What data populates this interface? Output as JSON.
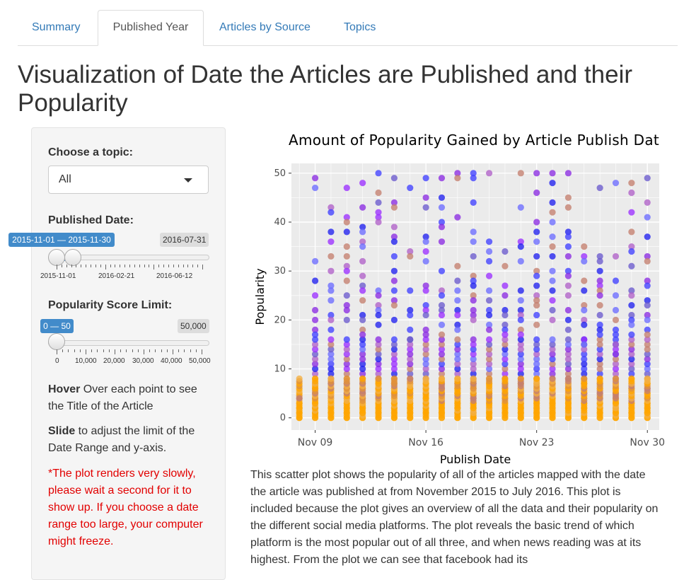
{
  "tabs": [
    {
      "label": "Summary",
      "active": false
    },
    {
      "label": "Published Year",
      "active": true
    },
    {
      "label": "Articles by Source",
      "active": false
    },
    {
      "label": "Topics",
      "active": false
    }
  ],
  "page_title": "Visualization of Date the Articles are Published and their Popularity",
  "sidebar": {
    "topic_label": "Choose a topic:",
    "topic_value": "All",
    "date_label": "Published Date:",
    "date_range": "2015-11-01 — 2015-11-30",
    "date_max": "2016-07-31",
    "date_ticks": [
      "2015-11-01",
      "2016-02-21",
      "2016-06-12"
    ],
    "pop_label": "Popularity Score Limit:",
    "pop_range": "0 — 50",
    "pop_max": "50,000",
    "pop_ticks": [
      "0",
      "10,000",
      "20,000",
      "30,000",
      "40,000",
      "50,000"
    ],
    "hover_bold": "Hover",
    "hover_text": " Over each point to see the Title of the Article",
    "slide_bold": "Slide",
    "slide_text": " to adjust the limit of the Date Range and y-axis.",
    "warning": "*The plot renders very slowly, please wait a second for it to show up. If you choose a date range too large, your computer might freeze."
  },
  "chart_data": {
    "type": "scatter",
    "title": "Amount of Popularity Gained by Article Publish Dat",
    "xlabel": "Publish Date",
    "ylabel": "Popularity",
    "x_ticks": [
      "Nov 09",
      "Nov 16",
      "Nov 23",
      "Nov 30"
    ],
    "y_ticks": [
      0,
      10,
      20,
      30,
      40,
      50
    ],
    "xlim": [
      "2015-11-07 12:00",
      "2015-11-30 18:00"
    ],
    "ylim": [
      -2.5,
      52
    ],
    "grid": true,
    "background": "#ebebeb",
    "point_colors": [
      "#ffa500",
      "#f4b043",
      "#e0913a",
      "#c47f6e",
      "#b060c8",
      "#9b30ff",
      "#8a2be2",
      "#6a5acd",
      "#6b6bff",
      "#4040ff",
      "#2020ee"
    ],
    "columns": [
      {
        "date": "2015-11-08",
        "top": [
          2,
          3,
          4
        ]
      },
      {
        "date": "2015-11-09",
        "top": [
          49,
          47,
          32,
          28,
          25,
          22,
          20,
          18,
          17
        ]
      },
      {
        "date": "2015-11-10",
        "top": [
          43,
          42,
          38,
          36,
          33,
          30,
          27,
          26,
          24,
          21,
          20,
          18
        ]
      },
      {
        "date": "2015-11-11",
        "top": [
          47,
          41,
          40,
          38,
          35,
          33,
          31,
          30,
          28,
          25,
          23,
          22,
          20
        ]
      },
      {
        "date": "2015-11-12",
        "top": [
          48,
          43,
          39,
          38,
          36,
          35,
          32,
          29,
          27,
          26,
          24,
          21,
          20,
          18,
          17
        ]
      },
      {
        "date": "2015-11-13",
        "top": [
          50,
          46,
          44,
          42,
          41,
          40,
          26,
          25,
          23,
          22,
          21,
          19
        ]
      },
      {
        "date": "2015-11-14",
        "top": [
          49,
          44,
          43,
          39,
          37,
          36,
          33,
          30,
          28,
          26,
          24,
          23,
          20
        ]
      },
      {
        "date": "2015-11-15",
        "top": [
          47,
          34,
          33,
          26,
          22,
          21,
          18,
          16
        ]
      },
      {
        "date": "2015-11-16",
        "top": [
          49,
          45,
          43,
          37,
          36,
          34,
          32,
          27,
          26,
          23,
          22,
          21,
          18,
          17
        ]
      },
      {
        "date": "2015-11-17",
        "top": [
          49,
          45,
          43,
          40,
          39,
          36,
          30,
          26,
          25,
          23,
          22,
          21,
          19,
          17
        ]
      },
      {
        "date": "2015-11-18",
        "top": [
          50,
          49,
          41,
          31,
          28,
          26,
          24,
          22,
          21,
          19,
          18
        ]
      },
      {
        "date": "2015-11-19",
        "top": [
          50,
          49,
          44,
          38,
          36,
          33,
          29,
          28,
          27,
          25,
          24,
          22,
          21,
          20
        ]
      },
      {
        "date": "2015-11-20",
        "top": [
          50,
          36,
          34,
          32,
          29,
          26,
          24,
          22,
          21,
          19,
          18
        ]
      },
      {
        "date": "2015-11-21",
        "top": [
          34,
          31,
          27,
          25,
          22,
          21,
          19,
          18,
          17
        ]
      },
      {
        "date": "2015-11-22",
        "top": [
          50,
          43,
          36,
          35,
          32,
          26,
          24,
          22,
          21,
          20,
          18,
          17
        ]
      },
      {
        "date": "2015-11-23",
        "top": [
          50,
          46,
          40,
          38,
          36,
          33,
          30,
          29,
          27,
          25,
          24,
          23,
          21,
          19
        ]
      },
      {
        "date": "2015-11-24",
        "top": [
          50,
          48,
          44,
          42,
          40,
          37,
          35,
          33,
          30,
          28,
          26,
          24,
          22,
          20
        ]
      },
      {
        "date": "2015-11-25",
        "top": [
          50,
          45,
          43,
          38,
          37,
          35,
          33,
          30,
          29,
          27,
          25,
          22,
          20,
          18
        ]
      },
      {
        "date": "2015-11-26",
        "top": [
          35,
          33,
          32,
          28,
          26,
          23,
          22,
          20,
          19,
          16,
          15
        ]
      },
      {
        "date": "2015-11-27",
        "top": [
          47,
          33,
          32,
          30,
          28,
          27,
          26,
          25,
          23,
          21,
          19,
          18,
          17
        ]
      },
      {
        "date": "2015-11-28",
        "top": [
          48,
          33,
          28,
          25,
          22,
          20,
          18,
          17,
          15,
          13
        ]
      },
      {
        "date": "2015-11-29",
        "top": [
          48,
          46,
          42,
          38,
          35,
          34,
          31,
          26,
          25,
          23,
          21,
          20,
          19,
          17
        ]
      },
      {
        "date": "2015-11-30",
        "top": [
          49,
          44,
          41,
          37,
          33,
          32,
          28,
          27,
          24,
          23,
          21,
          20,
          18,
          17
        ]
      }
    ]
  },
  "description": "This scatter plot shows the popularity of all of the articles mapped with the date the article was published at from November 2015 to July 2016. This plot is included because the plot gives an overview of all the data and their popularity on the different social media platforms. The plot reveals the basic trend of which platform is the most popular out of all three, and when news reading was at its highest. From the plot we can see that facebook had its"
}
